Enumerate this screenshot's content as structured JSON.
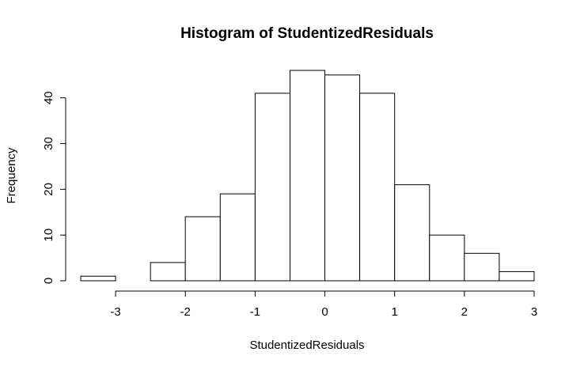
{
  "chart_data": {
    "type": "bar",
    "title": "Histogram of StudentizedResiduals",
    "xlabel": "StudentizedResiduals",
    "ylabel": "Frequency",
    "bin_edges": [
      -3.5,
      -3.0,
      -2.5,
      -2.0,
      -1.5,
      -1.0,
      -0.5,
      0.0,
      0.5,
      1.0,
      1.5,
      2.0,
      2.5,
      3.0
    ],
    "values": [
      1,
      0,
      4,
      14,
      19,
      41,
      46,
      45,
      41,
      21,
      10,
      6,
      2
    ],
    "xlim": [
      -3.5,
      3.0
    ],
    "ylim": [
      0,
      46
    ],
    "x_ticks": [
      -3,
      -2,
      -1,
      0,
      1,
      2,
      3
    ],
    "x_tick_labels": [
      "-3",
      "-2",
      "-1",
      "0",
      "1",
      "2",
      "3"
    ],
    "y_ticks": [
      0,
      10,
      20,
      30,
      40
    ],
    "y_tick_labels": [
      "0",
      "10",
      "20",
      "30",
      "40"
    ],
    "grid": false,
    "bar_fill": "#ffffff",
    "bar_stroke": "#000000"
  }
}
